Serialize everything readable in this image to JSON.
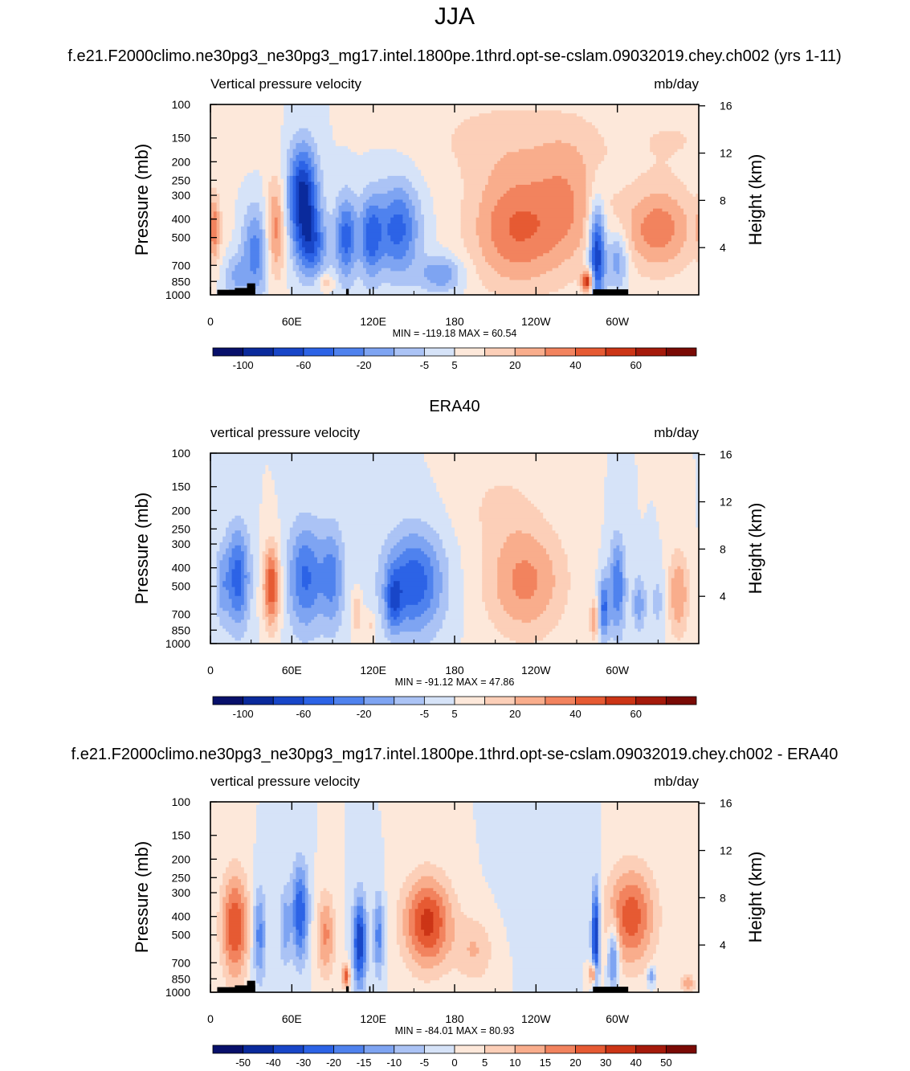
{
  "page": {
    "main_title": "JJA",
    "legend_bars": 3
  },
  "colors": {
    "levels": [
      "#08106b",
      "#0a2a9c",
      "#1846c8",
      "#2c63e6",
      "#4f82ee",
      "#7ea4f2",
      "#abc3f5",
      "#d6e3f8",
      "#fde8da",
      "#fccfb8",
      "#f9ad8c",
      "#f2835e",
      "#e65a33",
      "#cc3516",
      "#a51a0b",
      "#7a0a05"
    ]
  },
  "chart_data": [
    {
      "type": "heatmap",
      "title": "f.e21.F2000climo.ne30pg3_ne30pg3_mg17.intel.1800pe.1thrd.opt-se-cslam.09032019.chey.ch002 (yrs 1-11)",
      "left_label": "Vertical pressure velocity",
      "right_label": "mb/day",
      "ylabel": "Pressure (mb)",
      "y2label": "Height (km)",
      "xticks": [
        "0",
        "60E",
        "120E",
        "180",
        "120W",
        "60W"
      ],
      "yticks": [
        "100",
        "150",
        "200",
        "250",
        "300",
        "400",
        "500",
        "700",
        "850",
        "1000"
      ],
      "y2ticks": [
        "16",
        "12",
        "8",
        "4"
      ],
      "stats": "MIN = -119.18  MAX =  60.54",
      "colorbar_labels": [
        "-100",
        "-60",
        "-20",
        "-5",
        "5",
        "20",
        "40",
        "60"
      ],
      "colorbar_label_index": [
        1,
        3,
        5,
        7,
        8,
        10,
        12,
        14
      ],
      "terrain": true,
      "structures": [
        {
          "lon": 33,
          "p": 600,
          "w": 10,
          "h": 450,
          "v": -3.5
        },
        {
          "lon": 18,
          "p": 800,
          "w": 9,
          "h": 250,
          "v": -2.0
        },
        {
          "lon": 48,
          "p": 450,
          "w": 7,
          "h": 380,
          "v": 3.6
        },
        {
          "lon": 3,
          "p": 450,
          "w": 4,
          "h": 200,
          "v": 3.0
        },
        {
          "lon": 68,
          "p": 300,
          "w": 11,
          "h": 250,
          "v": -6.5
        },
        {
          "lon": 75,
          "p": 550,
          "w": 11,
          "h": 280,
          "v": -4.0
        },
        {
          "lon": 100,
          "p": 500,
          "w": 8,
          "h": 330,
          "v": -4.5
        },
        {
          "lon": 118,
          "p": 500,
          "w": 8,
          "h": 330,
          "v": -4.0
        },
        {
          "lon": 138,
          "p": 450,
          "w": 16,
          "h": 340,
          "v": -4.5
        },
        {
          "lon": 170,
          "p": 780,
          "w": 16,
          "h": 190,
          "v": -3.0
        },
        {
          "lon": 85,
          "p": 860,
          "w": 6,
          "h": 90,
          "v": 2.0
        },
        {
          "lon": 225,
          "p": 450,
          "w": 34,
          "h": 480,
          "v": 4.0
        },
        {
          "lon": 265,
          "p": 320,
          "w": 25,
          "h": 420,
          "v": 2.3
        },
        {
          "lon": 212,
          "p": 150,
          "w": 60,
          "h": 110,
          "v": 1.3
        },
        {
          "lon": 278,
          "p": 850,
          "w": 4,
          "h": 120,
          "v": 6.0
        },
        {
          "lon": 285,
          "p": 600,
          "w": 6,
          "h": 500,
          "v": -6.5
        },
        {
          "lon": 300,
          "p": 650,
          "w": 8,
          "h": 280,
          "v": -3.2
        },
        {
          "lon": 330,
          "p": 450,
          "w": 28,
          "h": 320,
          "v": 3.6
        },
        {
          "lon": 340,
          "p": 150,
          "w": 50,
          "h": 80,
          "v": 1.0
        }
      ]
    },
    {
      "type": "heatmap",
      "title": "ERA40",
      "left_label": "vertical pressure velocity",
      "right_label": "mb/day",
      "ylabel": "Pressure (mb)",
      "y2label": "Height (km)",
      "xticks": [
        "0",
        "60E",
        "120E",
        "180",
        "120W",
        "60W"
      ],
      "yticks": [
        "100",
        "150",
        "200",
        "250",
        "300",
        "400",
        "500",
        "700",
        "850",
        "1000"
      ],
      "y2ticks": [
        "16",
        "12",
        "8",
        "4"
      ],
      "stats": "MIN = -91.12  MAX =  47.86",
      "colorbar_labels": [
        "-100",
        "-60",
        "-20",
        "-5",
        "5",
        "20",
        "40",
        "60"
      ],
      "colorbar_label_index": [
        1,
        3,
        5,
        7,
        8,
        10,
        12,
        14
      ],
      "terrain": false,
      "structures": [
        {
          "lon": 20,
          "p": 450,
          "w": 9,
          "h": 380,
          "v": -4.6
        },
        {
          "lon": 45,
          "p": 500,
          "w": 6,
          "h": 320,
          "v": 5.0
        },
        {
          "lon": 8,
          "p": 500,
          "w": 5,
          "h": 300,
          "v": -2.0
        },
        {
          "lon": 70,
          "p": 450,
          "w": 13,
          "h": 420,
          "v": -4.2
        },
        {
          "lon": 90,
          "p": 450,
          "w": 9,
          "h": 400,
          "v": -3.2
        },
        {
          "lon": 108,
          "p": 700,
          "w": 4,
          "h": 200,
          "v": 2.0
        },
        {
          "lon": 118,
          "p": 800,
          "w": 4,
          "h": 150,
          "v": 1.4
        },
        {
          "lon": 150,
          "p": 480,
          "w": 22,
          "h": 420,
          "v": -4.8
        },
        {
          "lon": 135,
          "p": 600,
          "w": 6,
          "h": 260,
          "v": -3.0
        },
        {
          "lon": 232,
          "p": 470,
          "w": 30,
          "h": 470,
          "v": 3.3
        },
        {
          "lon": 212,
          "p": 180,
          "w": 30,
          "h": 120,
          "v": 1.0
        },
        {
          "lon": 283,
          "p": 750,
          "w": 3,
          "h": 200,
          "v": 3.0
        },
        {
          "lon": 290,
          "p": 650,
          "w": 4,
          "h": 300,
          "v": -4.2
        },
        {
          "lon": 300,
          "p": 500,
          "w": 6,
          "h": 400,
          "v": -4.0
        },
        {
          "lon": 316,
          "p": 620,
          "w": 5,
          "h": 250,
          "v": -2.6
        },
        {
          "lon": 345,
          "p": 550,
          "w": 8,
          "h": 380,
          "v": 3.0
        },
        {
          "lon": 330,
          "p": 600,
          "w": 6,
          "h": 300,
          "v": -1.4
        }
      ]
    },
    {
      "type": "heatmap",
      "title": "f.e21.F2000climo.ne30pg3_ne30pg3_mg17.intel.1800pe.1thrd.opt-se-cslam.09032019.chey.ch002 - ERA40",
      "left_label": "vertical pressure velocity",
      "right_label": "mb/day",
      "ylabel": "Pressure (mb)",
      "y2label": "Height (km)",
      "xticks": [
        "0",
        "60E",
        "120E",
        "180",
        "120W",
        "60W"
      ],
      "yticks": [
        "100",
        "150",
        "200",
        "250",
        "300",
        "400",
        "500",
        "700",
        "850",
        "1000"
      ],
      "y2ticks": [
        "16",
        "12",
        "8",
        "4"
      ],
      "stats": "MIN = -84.01  MAX =  80.93",
      "colorbar_labels": [
        "-50",
        "-40",
        "-30",
        "-20",
        "-15",
        "-10",
        "-5",
        "0",
        "5",
        "10",
        "15",
        "20",
        "30",
        "40",
        "50"
      ],
      "colorbar_label_index": [
        1,
        2,
        3,
        4,
        5,
        6,
        7,
        8,
        9,
        10,
        11,
        12,
        13,
        14,
        15
      ],
      "terrain": true,
      "structures": [
        {
          "lon": 18,
          "p": 450,
          "w": 10,
          "h": 400,
          "v": 5.0
        },
        {
          "lon": 36,
          "p": 500,
          "w": 5,
          "h": 380,
          "v": -3.5
        },
        {
          "lon": 66,
          "p": 380,
          "w": 6,
          "h": 300,
          "v": -5.0
        },
        {
          "lon": 55,
          "p": 450,
          "w": 4,
          "h": 280,
          "v": -2.5
        },
        {
          "lon": 85,
          "p": 500,
          "w": 7,
          "h": 340,
          "v": 3.2
        },
        {
          "lon": 110,
          "p": 550,
          "w": 5,
          "h": 400,
          "v": -6.0
        },
        {
          "lon": 124,
          "p": 500,
          "w": 4,
          "h": 320,
          "v": -3.5
        },
        {
          "lon": 100,
          "p": 820,
          "w": 3,
          "h": 130,
          "v": 4.5
        },
        {
          "lon": 160,
          "p": 430,
          "w": 18,
          "h": 320,
          "v": 5.4
        },
        {
          "lon": 195,
          "p": 600,
          "w": 14,
          "h": 300,
          "v": 2.0
        },
        {
          "lon": 250,
          "p": 300,
          "w": 25,
          "h": 250,
          "v": -1.0
        },
        {
          "lon": 284,
          "p": 500,
          "w": 3,
          "h": 400,
          "v": -6.5
        },
        {
          "lon": 282,
          "p": 800,
          "w": 2.5,
          "h": 100,
          "v": 5.5
        },
        {
          "lon": 297,
          "p": 650,
          "w": 4,
          "h": 300,
          "v": -4.5
        },
        {
          "lon": 310,
          "p": 400,
          "w": 18,
          "h": 330,
          "v": 4.6
        },
        {
          "lon": 325,
          "p": 820,
          "w": 3,
          "h": 100,
          "v": -3.0
        },
        {
          "lon": 352,
          "p": 900,
          "w": 5,
          "h": 100,
          "v": 3.0
        }
      ]
    }
  ]
}
